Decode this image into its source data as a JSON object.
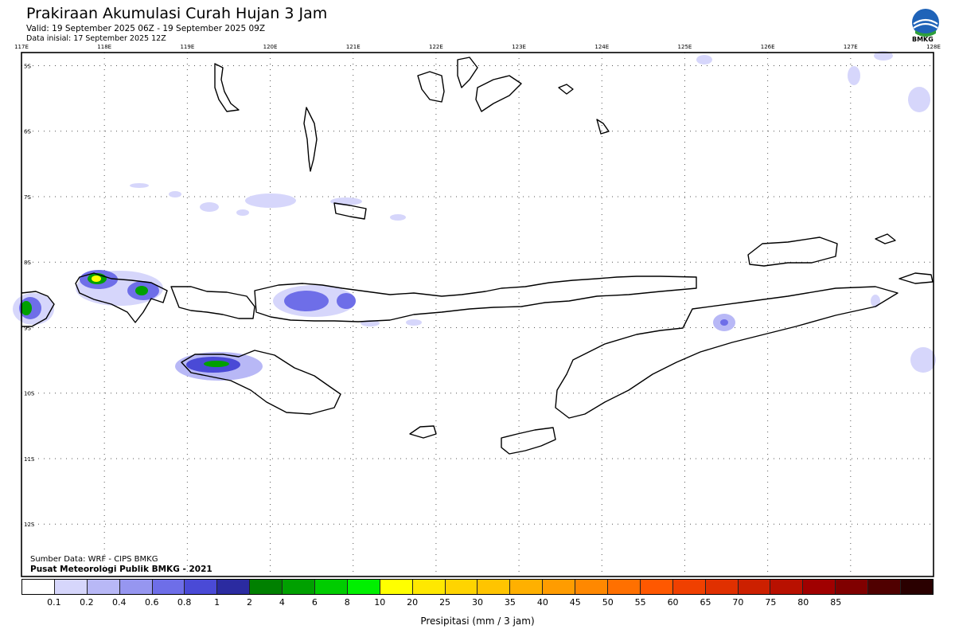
{
  "header": {
    "title": "Prakiraan Akumulasi Curah Hujan 3 Jam",
    "valid": "Valid: 19 September 2025 06Z - 19 September 2025 09Z",
    "initial": "Data inisial: 17 September 2025 12Z"
  },
  "logo": {
    "text": "BMKG",
    "icon": "bmkg-logo-icon"
  },
  "map": {
    "lon_range": [
      117,
      128
    ],
    "lat_range": [
      -12.8,
      -4.8
    ],
    "lon_labels": [
      "117E",
      "118E",
      "119E",
      "120E",
      "121E",
      "122E",
      "123E",
      "124E",
      "125E",
      "126E",
      "127E",
      "128E"
    ],
    "lat_labels": [
      "5S",
      "6S",
      "7S",
      "8S",
      "9S",
      "10S",
      "11S",
      "12S"
    ],
    "grid": "dotted"
  },
  "footer": {
    "source": "Sumber Data: WRF - CIPS BMKG",
    "org": "Pusat Meteorologi Publik BMKG - 2021"
  },
  "legend": {
    "colors": [
      "#ffffff",
      "#d6d6fb",
      "#b8b8f6",
      "#9696f0",
      "#6e6ee8",
      "#4a4ad6",
      "#2b2ba0",
      "#008000",
      "#00a000",
      "#00cc00",
      "#00f000",
      "#ffff00",
      "#ffe800",
      "#ffd400",
      "#ffc400",
      "#ffb000",
      "#ff9c00",
      "#ff8800",
      "#ff7000",
      "#ff5800",
      "#f04000",
      "#e03000",
      "#cc2000",
      "#b81000",
      "#a00000",
      "#800000",
      "#500000",
      "#2a0000"
    ],
    "labels": [
      "0.1",
      "0.2",
      "0.4",
      "0.6",
      "0.8",
      "1",
      "2",
      "4",
      "6",
      "8",
      "10",
      "20",
      "25",
      "30",
      "35",
      "40",
      "45",
      "50",
      "55",
      "60",
      "65",
      "70",
      "75",
      "80",
      "85"
    ],
    "unit": "Presipitasi (mm / 3 jam)"
  }
}
